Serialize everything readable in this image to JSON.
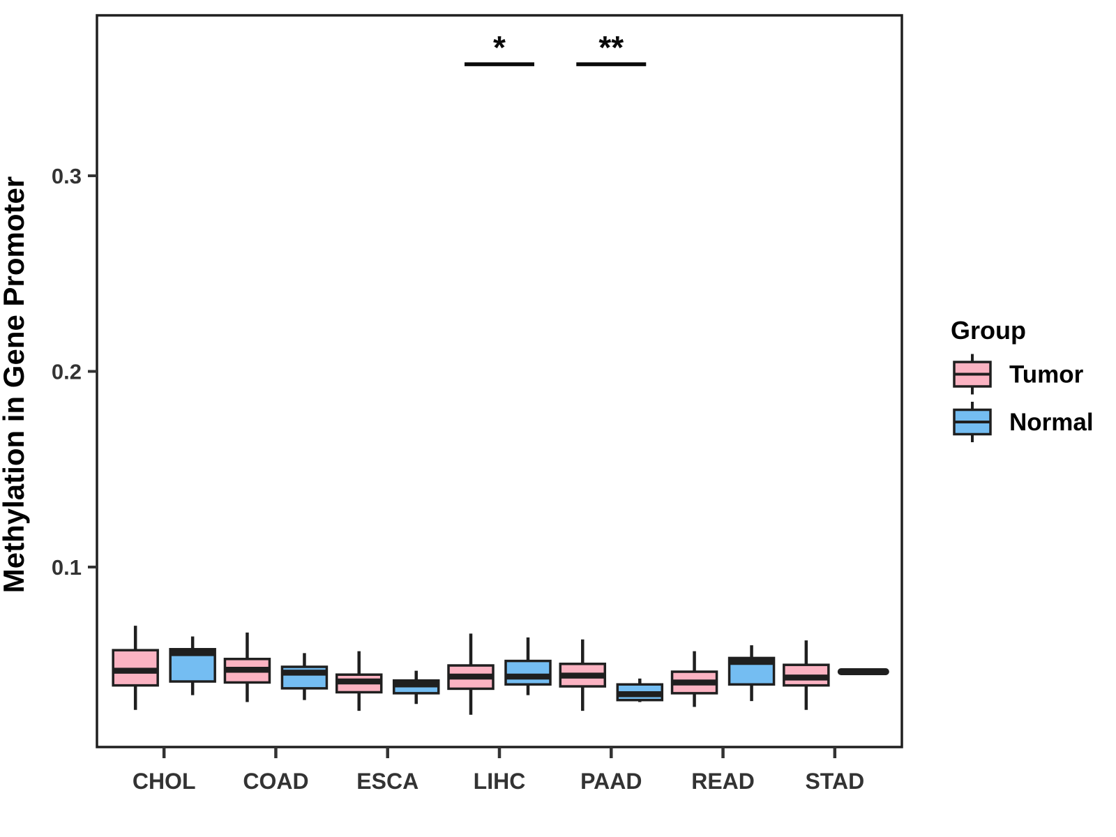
{
  "chart_data": {
    "type": "boxplot",
    "title": "",
    "xlabel": "",
    "ylabel": "Methylation in Gene Promoter",
    "categories": [
      "CHOL",
      "COAD",
      "ESCA",
      "LIHC",
      "PAAD",
      "READ",
      "STAD"
    ],
    "y_ticks": [
      0.1,
      0.2,
      0.3
    ],
    "y_tick_labels": [
      "0.1",
      "0.2",
      "0.3"
    ],
    "ylim": [
      0.008,
      0.382
    ],
    "grid": false,
    "legend_position": "right",
    "colors": {
      "tumor_fill": "#FBB3C2",
      "normal_fill": "#74BDF2",
      "box_stroke": "#1F1F1F",
      "axis_text": "#333333",
      "axis_title": "#000000",
      "annotation": "#0A0A0A",
      "panel_border": "#1F1F1F",
      "background": "#FFFFFF"
    },
    "legend": {
      "title": "Group",
      "entries": [
        {
          "label": "Tumor",
          "color": "#FBB3C2"
        },
        {
          "label": "Normal",
          "color": "#74BDF2"
        }
      ]
    },
    "series": [
      {
        "name": "Tumor",
        "color": "#FBB3C2",
        "boxes": [
          {
            "category": "CHOL",
            "lo": 0.027,
            "q1": 0.0395,
            "med": 0.047,
            "q3": 0.0575,
            "hi": 0.07
          },
          {
            "category": "COAD",
            "lo": 0.031,
            "q1": 0.041,
            "med": 0.0475,
            "q3": 0.053,
            "hi": 0.0665
          },
          {
            "category": "ESCA",
            "lo": 0.0265,
            "q1": 0.036,
            "med": 0.0415,
            "q3": 0.045,
            "hi": 0.057
          },
          {
            "category": "LIHC",
            "lo": 0.0245,
            "q1": 0.0378,
            "med": 0.044,
            "q3": 0.0497,
            "hi": 0.066
          },
          {
            "category": "PAAD",
            "lo": 0.0265,
            "q1": 0.039,
            "med": 0.0445,
            "q3": 0.0505,
            "hi": 0.063
          },
          {
            "category": "READ",
            "lo": 0.0285,
            "q1": 0.0355,
            "med": 0.041,
            "q3": 0.0465,
            "hi": 0.057
          },
          {
            "category": "STAD",
            "lo": 0.027,
            "q1": 0.0395,
            "med": 0.0435,
            "q3": 0.05,
            "hi": 0.0625
          }
        ]
      },
      {
        "name": "Normal",
        "color": "#74BDF2",
        "boxes": [
          {
            "category": "CHOL",
            "lo": 0.0345,
            "q1": 0.0415,
            "med": 0.056,
            "q3": 0.058,
            "hi": 0.0645
          },
          {
            "category": "COAD",
            "lo": 0.032,
            "q1": 0.038,
            "med": 0.046,
            "q3": 0.049,
            "hi": 0.056
          },
          {
            "category": "ESCA",
            "lo": 0.03,
            "q1": 0.0355,
            "med": 0.04,
            "q3": 0.042,
            "hi": 0.047
          },
          {
            "category": "LIHC",
            "lo": 0.0345,
            "q1": 0.04,
            "med": 0.044,
            "q3": 0.052,
            "hi": 0.064
          },
          {
            "category": "PAAD",
            "lo": 0.031,
            "q1": 0.032,
            "med": 0.035,
            "q3": 0.04,
            "hi": 0.043
          },
          {
            "category": "READ",
            "lo": 0.0315,
            "q1": 0.04,
            "med": 0.0515,
            "q3": 0.0535,
            "hi": 0.06
          },
          {
            "category": "STAD",
            "lo": null,
            "q1": null,
            "med": 0.0465,
            "q3": null,
            "hi": null
          }
        ]
      }
    ],
    "significance": [
      {
        "category": "LIHC",
        "label": "*"
      },
      {
        "category": "PAAD",
        "label": "**"
      }
    ],
    "sig_bar_y": 0.357
  }
}
